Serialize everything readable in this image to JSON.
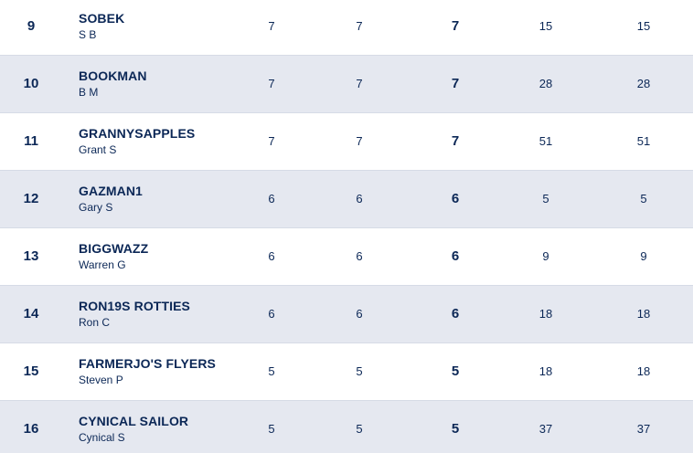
{
  "table": {
    "rows": [
      {
        "rank": 9,
        "team": "SOBEK",
        "manager": "S B",
        "cells": [
          7,
          7,
          7,
          15,
          15
        ]
      },
      {
        "rank": 10,
        "team": "BOOKMAN",
        "manager": "B M",
        "cells": [
          7,
          7,
          7,
          28,
          28
        ]
      },
      {
        "rank": 11,
        "team": "GRANNYSAPPLES",
        "manager": "Grant S",
        "cells": [
          7,
          7,
          7,
          51,
          51
        ]
      },
      {
        "rank": 12,
        "team": "GAZMAN1",
        "manager": "Gary S",
        "cells": [
          6,
          6,
          6,
          5,
          5
        ]
      },
      {
        "rank": 13,
        "team": "BIGGWAZZ",
        "manager": "Warren G",
        "cells": [
          6,
          6,
          6,
          9,
          9
        ]
      },
      {
        "rank": 14,
        "team": "RON19S ROTTIES",
        "manager": "Ron C",
        "cells": [
          6,
          6,
          6,
          18,
          18
        ]
      },
      {
        "rank": 15,
        "team": "FARMERJO'S FLYERS",
        "manager": "Steven P",
        "cells": [
          5,
          5,
          5,
          18,
          18
        ]
      },
      {
        "rank": 16,
        "team": "CYNICAL SAILOR",
        "manager": "Cynical S",
        "cells": [
          5,
          5,
          5,
          37,
          37
        ]
      }
    ]
  }
}
